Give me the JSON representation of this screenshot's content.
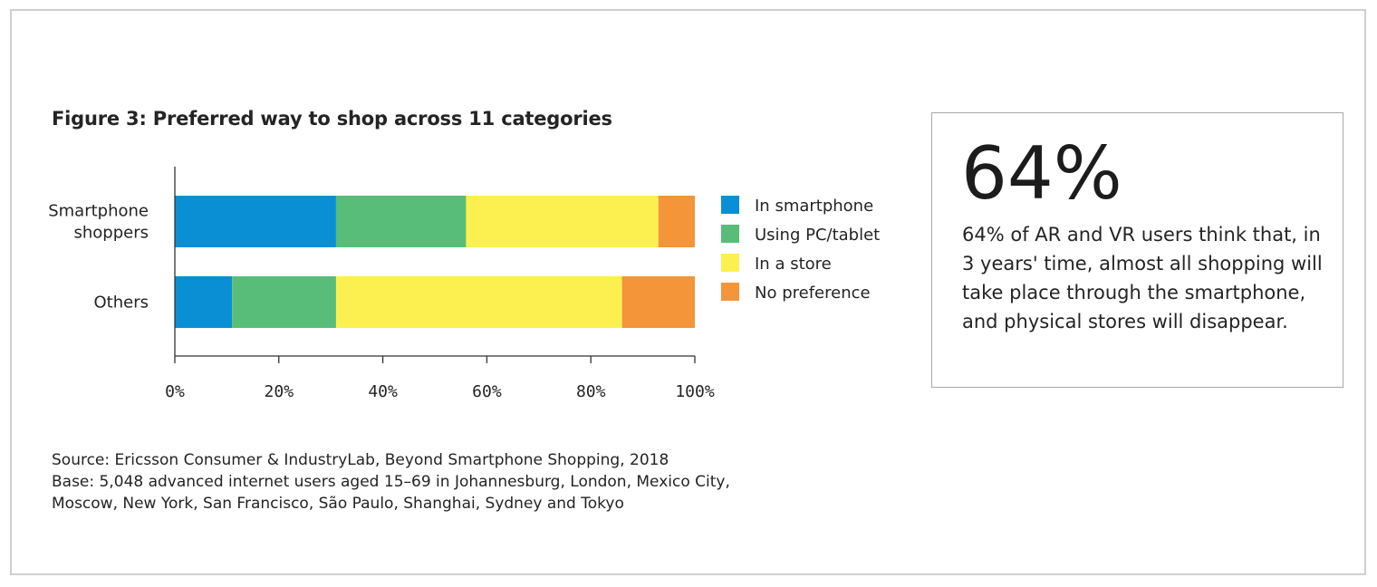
{
  "figure": {
    "title": "Figure 3: Preferred way to shop across 11 categories"
  },
  "chart_data": {
    "type": "bar",
    "orientation": "horizontal",
    "stacked": true,
    "title": "Figure 3: Preferred way to shop across 11 categories",
    "categories": [
      "Smartphone shoppers",
      "Others"
    ],
    "category_lines": [
      [
        "Smartphone",
        "shoppers"
      ],
      [
        "Others"
      ]
    ],
    "series": [
      {
        "name": "In smartphone",
        "color": "#0a8fd4",
        "values": [
          31,
          11
        ]
      },
      {
        "name": "Using PC/tablet",
        "color": "#58bd78",
        "values": [
          25,
          20
        ]
      },
      {
        "name": "In a store",
        "color": "#fcf050",
        "values": [
          37,
          55
        ]
      },
      {
        "name": "No preference",
        "color": "#f4953a",
        "values": [
          7,
          14
        ]
      }
    ],
    "xlim": [
      0,
      100
    ],
    "xticks": [
      "0%",
      "20%",
      "40%",
      "60%",
      "80%",
      "100%"
    ],
    "grid": false,
    "legend_position": "right"
  },
  "source": {
    "lines": [
      "Source: Ericsson Consumer & IndustryLab, Beyond Smartphone Shopping, 2018",
      "Base: 5,048 advanced internet users aged 15–69 in Johannesburg, London, Mexico City,",
      "Moscow, New York, San Francisco, São Paulo, Shanghai, Sydney and Tokyo"
    ]
  },
  "callout": {
    "big_number": "64%",
    "text": "64% of AR and VR users think that, in 3 years' time, almost all shopping will take place through the smartphone, and physical stores will disappear."
  }
}
